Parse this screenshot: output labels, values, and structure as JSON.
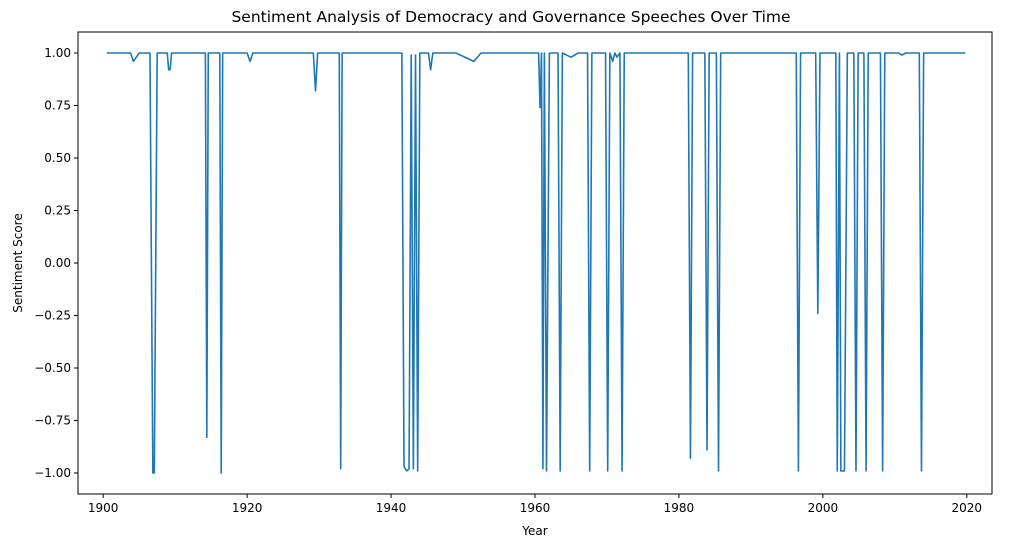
{
  "chart_data": {
    "type": "line",
    "title": "Sentiment Analysis of Democracy and Governance Speeches Over Time",
    "xlabel": "Year",
    "ylabel": "Sentiment Score",
    "xlim": [
      1896.5,
      2023.5
    ],
    "ylim": [
      -1.1,
      1.1
    ],
    "x_ticks": [
      1900,
      1920,
      1940,
      1960,
      1980,
      2000,
      2020
    ],
    "y_ticks": [
      1.0,
      0.75,
      0.5,
      0.25,
      0.0,
      -0.25,
      -0.5,
      -0.75,
      -1.0
    ],
    "x_tick_labels": [
      "1900",
      "1920",
      "1940",
      "1960",
      "1980",
      "2000",
      "2020"
    ],
    "y_tick_labels": [
      "1.00",
      "0.75",
      "0.50",
      "0.25",
      "0.00",
      "−0.25",
      "−0.50",
      "−0.75",
      "−1.00"
    ],
    "grid": false,
    "legend": "none",
    "colors": {
      "series": "#1f77b4"
    },
    "series": [
      {
        "x": [
          1900.5,
          1903.8,
          1904.2,
          1904.6,
          1905.0,
          1906.5,
          1906.9,
          1907.1,
          1907.5,
          1908.9,
          1909.1,
          1909.3,
          1909.5,
          1914.2,
          1914.4,
          1914.6,
          1916.2,
          1916.4,
          1916.6,
          1920.0,
          1920.4,
          1920.8,
          1921.5,
          1929.2,
          1929.5,
          1929.8,
          1932.8,
          1933.0,
          1933.2,
          1941.5,
          1941.8,
          1942.2,
          1942.5,
          1942.8,
          1943.1,
          1943.4,
          1943.7,
          1944.0,
          1944.2,
          1945.2,
          1945.5,
          1945.8,
          1949.0,
          1951.5,
          1952.5,
          1960.5,
          1960.7,
          1960.9,
          1961.1,
          1961.3,
          1961.6,
          1962.0,
          1962.3,
          1963.2,
          1963.5,
          1963.8,
          1965.0,
          1966.0,
          1967.3,
          1967.6,
          1967.9,
          1968.2,
          1969.8,
          1970.1,
          1970.4,
          1970.8,
          1971.1,
          1971.4,
          1971.8,
          1972.1,
          1972.4,
          1972.8,
          1973.5,
          1981.3,
          1981.6,
          1981.9,
          1983.6,
          1983.9,
          1984.2,
          1985.2,
          1985.5,
          1985.8,
          1986.5,
          1996.3,
          1996.6,
          1996.9,
          1999.0,
          1999.3,
          1999.6,
          2001.8,
          2002.0,
          2002.3,
          2002.5,
          2003.0,
          2003.4,
          2004.3,
          2004.6,
          2004.9,
          2005.7,
          2006.0,
          2006.3,
          2008.0,
          2008.3,
          2008.6,
          2010.5,
          2011.0,
          2011.5,
          2013.4,
          2013.7,
          2014.0,
          2019.8
        ],
        "y": [
          1.0,
          1.0,
          0.96,
          0.98,
          1.0,
          1.0,
          -1.0,
          -1.0,
          1.0,
          1.0,
          0.92,
          0.92,
          1.0,
          1.0,
          -0.83,
          1.0,
          1.0,
          -1.0,
          1.0,
          1.0,
          0.96,
          1.0,
          1.0,
          1.0,
          0.82,
          1.0,
          1.0,
          -0.98,
          1.0,
          1.0,
          -0.97,
          -0.99,
          -0.98,
          0.99,
          -0.98,
          0.99,
          -0.99,
          1.0,
          1.0,
          1.0,
          0.92,
          1.0,
          1.0,
          0.96,
          1.0,
          1.0,
          0.74,
          1.0,
          -0.98,
          1.0,
          -0.99,
          1.0,
          1.0,
          1.0,
          -0.99,
          1.0,
          0.98,
          1.0,
          1.0,
          -0.99,
          1.0,
          1.0,
          1.0,
          -0.99,
          1.0,
          0.96,
          1.0,
          0.98,
          1.0,
          -0.99,
          1.0,
          1.0,
          1.0,
          1.0,
          -0.93,
          1.0,
          1.0,
          -0.89,
          1.0,
          1.0,
          -0.99,
          1.0,
          1.0,
          1.0,
          -0.99,
          1.0,
          1.0,
          -0.24,
          1.0,
          1.0,
          -0.99,
          1.0,
          -0.99,
          -0.99,
          1.0,
          1.0,
          -0.99,
          1.0,
          1.0,
          -0.99,
          1.0,
          1.0,
          -0.99,
          1.0,
          1.0,
          0.99,
          1.0,
          1.0,
          -0.99,
          1.0,
          1.0
        ]
      }
    ]
  }
}
